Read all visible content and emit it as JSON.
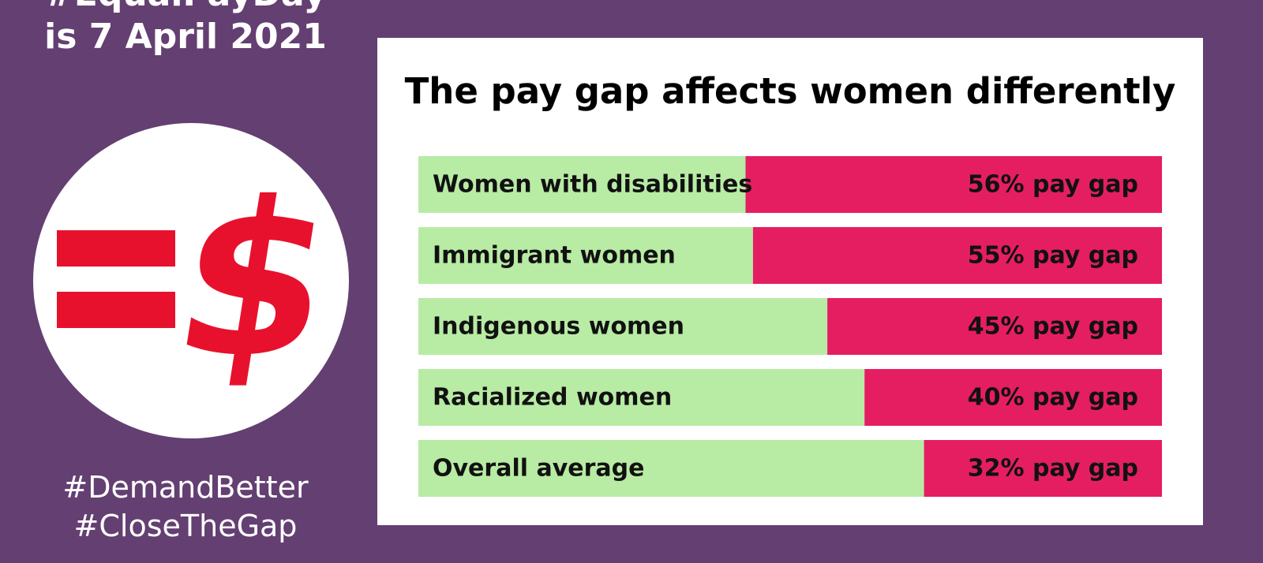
{
  "header": {
    "line1": "#EqualPayDay",
    "line2": "is 7 April 2021"
  },
  "logo": {
    "icon": "equals-dollar-icon",
    "dollar_glyph": "$",
    "color": "#e8112d"
  },
  "hashtags": {
    "tag1": "#DemandBetter",
    "tag2": "#CloseTheGap"
  },
  "colors": {
    "background": "#643f72",
    "card": "#ffffff",
    "earned": "#b8eba4",
    "gap": "#e51e62"
  },
  "chart_data": {
    "type": "bar",
    "orientation": "horizontal",
    "stacked": true,
    "title": "The pay gap affects women differently",
    "categories": [
      "Women with disabilities",
      "Immigrant women",
      "Indigenous women",
      "Racialized women",
      "Overall average"
    ],
    "values": [
      56,
      55,
      45,
      40,
      32
    ],
    "value_labels": [
      "56% pay gap",
      "55% pay gap",
      "45% pay gap",
      "40% pay gap",
      "32% pay gap"
    ],
    "xlim": [
      0,
      100
    ],
    "grid": false,
    "legend": "none"
  }
}
